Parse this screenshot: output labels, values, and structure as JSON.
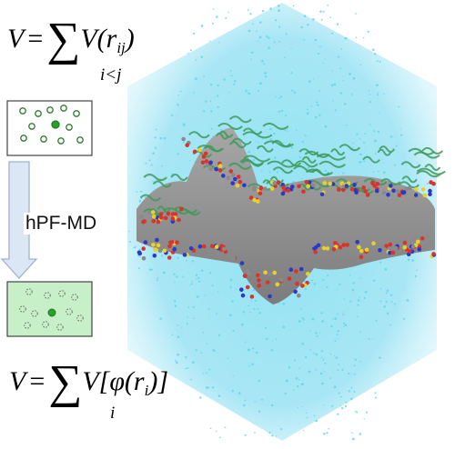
{
  "formula_top": {
    "lhs": "V",
    "eq": "=",
    "sigma": "∑",
    "body": "V(r",
    "subscript": "ij",
    "close": ")",
    "index": "i<j"
  },
  "formula_bottom": {
    "lhs": "V",
    "eq": "=",
    "sigma": "∑",
    "body": "V[φ(r",
    "subscript": "i",
    "close": ")]",
    "index": "i"
  },
  "arrow_label": "hPF-MD",
  "colors": {
    "particle_box_top": "#ffffff",
    "particle_box_bottom": "#c8f0c8",
    "particle_green": "#2aa02a",
    "arrow_fill": "#dbe7f5",
    "arrow_stroke": "#9fb4d0",
    "solvent": "#5fd3ea",
    "lipid_body": "#8a8a8a",
    "headgroup_red": "#d9342b",
    "headgroup_blue": "#2b39c8",
    "headgroup_yellow": "#e8d12a",
    "tail_green": "#3d9a5a"
  },
  "icons": [
    "particle-box-icon",
    "field-box-icon",
    "down-arrow-icon",
    "molecular-snapshot-icon"
  ]
}
